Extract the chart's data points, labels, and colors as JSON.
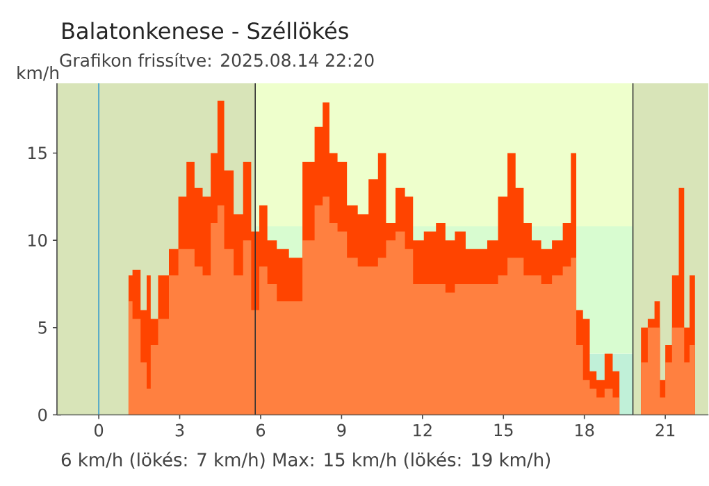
{
  "chart_data": {
    "type": "area",
    "title": "Balatonkenese - Széllökés",
    "subtitle": "Grafikon frissítve: 2025.08.14 22:20",
    "ylabel": "km/h",
    "annotations": [
      "6 km/h  (lökés: 7 km/h)  Max: 15 km/h (lökés: 19 km/h)"
    ],
    "x": [
      1.1,
      1.4,
      1.7,
      1.85,
      2.0,
      2.4,
      2.8,
      3.1,
      3.4,
      3.7,
      4.0,
      4.3,
      4.5,
      4.8,
      5.2,
      5.5,
      5.8,
      6.1,
      6.4,
      6.8,
      7.3,
      7.8,
      8.2,
      8.4,
      8.7,
      9.0,
      9.4,
      9.8,
      10.2,
      10.5,
      10.8,
      11.2,
      11.5,
      11.8,
      12.3,
      12.7,
      13.0,
      13.4,
      13.8,
      14.2,
      14.6,
      15.0,
      15.3,
      15.6,
      15.9,
      16.2,
      16.6,
      17.0,
      17.4,
      17.6,
      17.8,
      18.1,
      18.3,
      18.6,
      18.9,
      19.2,
      19.4,
      20.0,
      20.2,
      20.5,
      20.7,
      20.9,
      21.1,
      21.4,
      21.6,
      21.8,
      22.0,
      22.2
    ],
    "series": [
      {
        "color": "#ff4400",
        "values": [
          8,
          8.3,
          6,
          8,
          5.5,
          8,
          9.5,
          12.5,
          14.5,
          13,
          12.5,
          15,
          18,
          14,
          11.5,
          14.5,
          10.5,
          12,
          10,
          9.5,
          9,
          14.5,
          16.5,
          17.9,
          15,
          14.5,
          12,
          11.5,
          13.5,
          15,
          11,
          13,
          12.5,
          10,
          10.5,
          11,
          10,
          10.5,
          9.5,
          9.5,
          10,
          12.5,
          15,
          13,
          11,
          10,
          9.5,
          10,
          11,
          15,
          6,
          5.5,
          2.5,
          2,
          3.5,
          2.5,
          0,
          0,
          5,
          5.5,
          6.5,
          2,
          4,
          8,
          13,
          5,
          8,
          0
        ]
      },
      {
        "color": "#ff8040",
        "values": [
          6.5,
          5.5,
          3,
          1.5,
          4,
          5.5,
          8,
          9.5,
          9.5,
          8.5,
          8,
          11,
          12,
          9.5,
          8,
          10,
          6,
          8.5,
          7.5,
          6.5,
          6.5,
          10,
          12,
          12.5,
          11,
          10.5,
          9,
          8.5,
          8.5,
          9,
          10,
          10.5,
          9.5,
          7.5,
          7.5,
          7.5,
          7,
          7.5,
          7.5,
          7.5,
          7.5,
          8,
          9,
          9,
          8,
          8,
          7.5,
          8,
          8.5,
          9,
          4,
          2,
          1.5,
          1,
          1.5,
          1,
          0,
          0,
          3,
          5,
          5,
          1,
          3,
          5,
          5,
          3,
          4,
          0
        ]
      }
    ],
    "xlim": [
      -1.55,
      22.6
    ],
    "ylim": [
      0,
      19
    ],
    "xticks": [
      0,
      3,
      6,
      9,
      12,
      15,
      18,
      21
    ],
    "yticks": [
      0,
      5,
      10,
      15
    ],
    "grid": false,
    "bands": [
      {
        "axis": "y",
        "from": 0,
        "to": 3.5,
        "color": "#c0f0d8"
      },
      {
        "axis": "y",
        "from": 3.5,
        "to": 10.8,
        "color": "#d8fcd0"
      },
      {
        "axis": "y",
        "from": 10.8,
        "to": 19,
        "color": "#eeffcc"
      },
      {
        "axis": "x",
        "from": -1.55,
        "to": 5.8,
        "color": "#d8e4b8"
      },
      {
        "axis": "x",
        "from": 19.8,
        "to": 22.6,
        "color": "#d8e4b8"
      }
    ],
    "ref_lines": [
      {
        "axis": "x",
        "value": 0,
        "color": "#3399cc"
      },
      {
        "axis": "x",
        "value": 5.8,
        "color": "#333333"
      },
      {
        "axis": "x",
        "value": 19.8,
        "color": "#333333"
      }
    ]
  }
}
